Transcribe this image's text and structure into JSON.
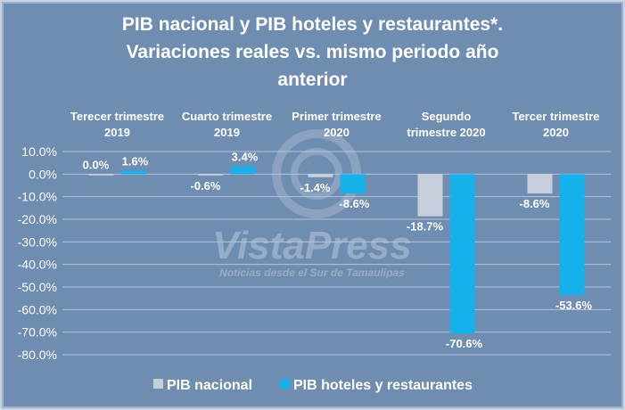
{
  "chart_data": {
    "type": "bar",
    "title": "PIB nacional y PIB hoteles y restaurantes*. Variaciones reales vs. mismo periodo año anterior",
    "title_lines": [
      "PIB nacional y PIB hoteles y restaurantes*.",
      "Variaciones reales vs. mismo periodo año",
      "anterior"
    ],
    "categories": [
      [
        "Terecer trimestre",
        "2019"
      ],
      [
        "Cuarto trimestre",
        "2019"
      ],
      [
        "Primer trimestre",
        "2020"
      ],
      [
        "Segundo",
        "trimestre 2020"
      ],
      [
        "Tercer trimestre",
        "2020"
      ]
    ],
    "series": [
      {
        "name": "PIB nacional",
        "color": "#c5cfdc",
        "values": [
          0.0,
          -0.6,
          -1.4,
          -18.7,
          -8.6
        ],
        "labels": [
          "0.0%",
          "-0.6%",
          "-1.4%",
          "-18.7%",
          "-8.6%"
        ]
      },
      {
        "name": "PIB hoteles y restaurantes",
        "color": "#14b1ea",
        "values": [
          1.6,
          3.4,
          -8.6,
          -70.6,
          -53.6
        ],
        "labels": [
          "1.6%",
          "3.4%",
          "-8.6%",
          "-70.6%",
          "-53.6%"
        ]
      }
    ],
    "ylim": [
      -80,
      10
    ],
    "yticks": [
      "10.0%",
      "0.0%",
      "-10.0%",
      "-20.0%",
      "-30.0%",
      "-40.0%",
      "-50.0%",
      "-60.0%",
      "-70.0%",
      "-80.0%"
    ],
    "xlabel": "",
    "ylabel": "",
    "grid": true,
    "legend_position": "bottom"
  },
  "watermark": {
    "brand": "VistaPress",
    "tagline": "Noticias desde el Sur de Tamaulipas"
  }
}
